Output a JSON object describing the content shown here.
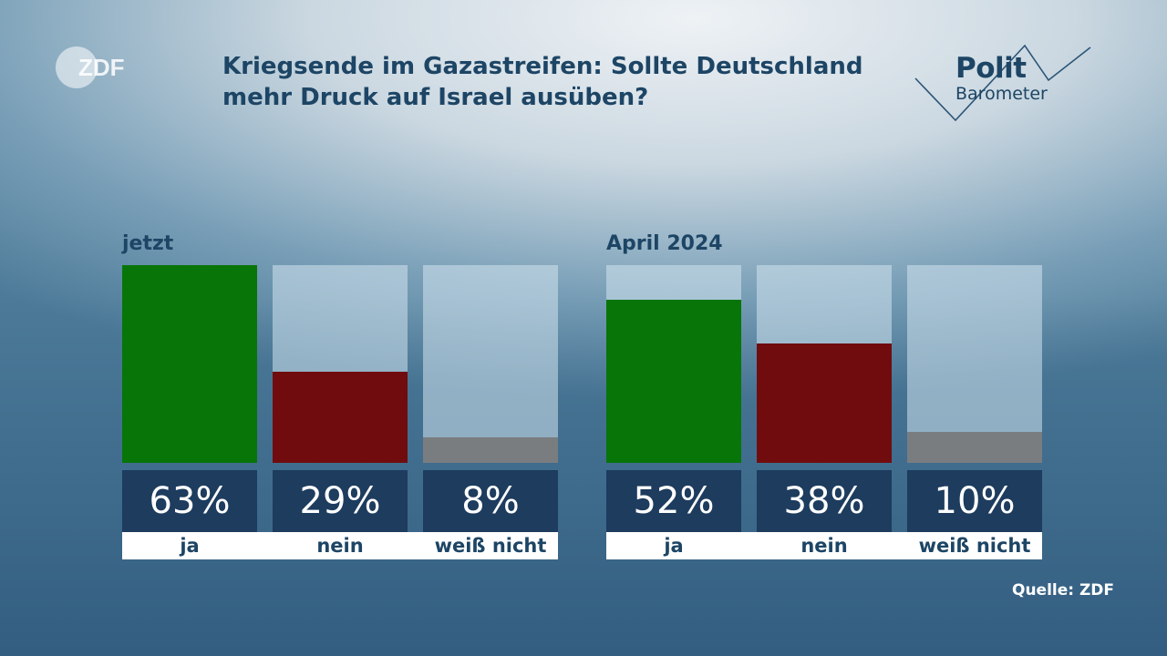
{
  "header": {
    "brand": "ZDF",
    "title_line1": "Kriegsende im Gazastreifen: Sollte Deutschland",
    "title_line2": "mehr Druck auf Israel ausüben?",
    "polit_logo_line1": "Polit",
    "polit_logo_line2": "Barometer"
  },
  "footer": {
    "source": "Quelle: ZDF"
  },
  "chart_data": {
    "type": "bar",
    "title": "Kriegsende im Gazastreifen: Sollte Deutschland mehr Druck auf Israel ausüben?",
    "ylim": [
      0,
      63
    ],
    "groups": [
      {
        "label": "jetzt",
        "bars": [
          {
            "category": "ja",
            "value": 63,
            "display": "63%",
            "color": "#087508"
          },
          {
            "category": "nein",
            "value": 29,
            "display": "29%",
            "color": "#700c0e"
          },
          {
            "category": "weiß nicht",
            "value": 8,
            "display": "8%",
            "color": "#7a7d80"
          }
        ]
      },
      {
        "label": "April 2024",
        "bars": [
          {
            "category": "ja",
            "value": 52,
            "display": "52%",
            "color": "#087508"
          },
          {
            "category": "nein",
            "value": 38,
            "display": "38%",
            "color": "#700c0e"
          },
          {
            "category": "weiß nicht",
            "value": 10,
            "display": "10%",
            "color": "#7a7d80"
          }
        ]
      }
    ]
  }
}
